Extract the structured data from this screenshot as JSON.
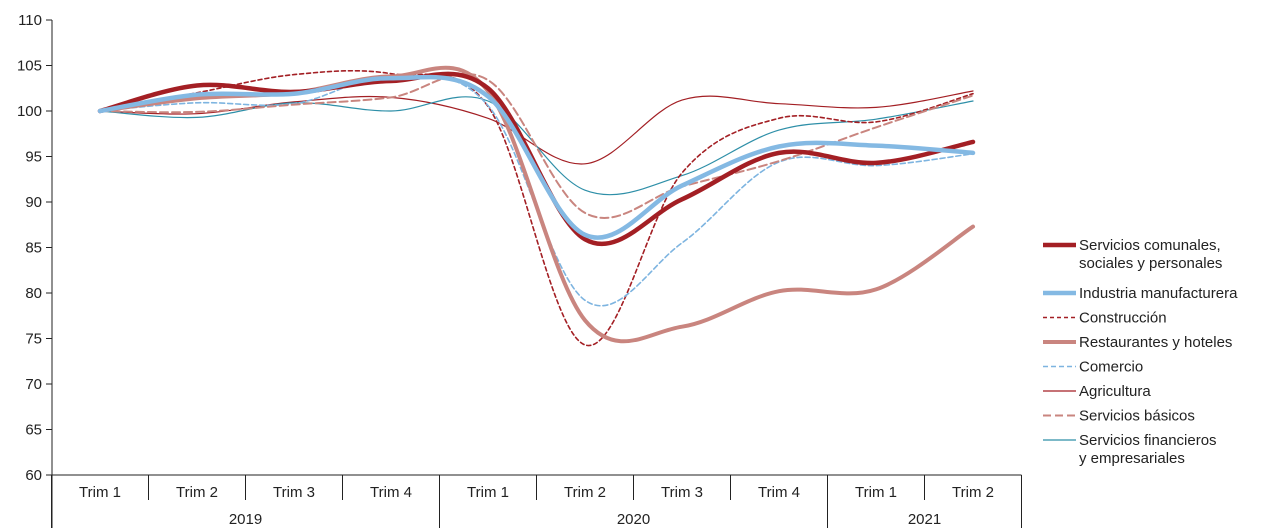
{
  "chart_data": {
    "type": "line",
    "title": "",
    "xlabel": "",
    "ylabel": "",
    "ylim": [
      60,
      110
    ],
    "yticks": [
      60,
      65,
      70,
      75,
      80,
      85,
      90,
      95,
      100,
      105,
      110
    ],
    "categories": [
      "Trim 1",
      "Trim 2",
      "Trim 3",
      "Trim 4",
      "Trim 1",
      "Trim 2",
      "Trim 3",
      "Trim 4",
      "Trim 1",
      "Trim 2"
    ],
    "years": [
      {
        "label": "2019",
        "start": 0,
        "end": 3
      },
      {
        "label": "2020",
        "start": 4,
        "end": 7
      },
      {
        "label": "2021",
        "start": 8,
        "end": 9
      }
    ],
    "grid": false,
    "legend_position": "right",
    "series": [
      {
        "name": "Servicios comunales,",
        "name2": "sociales y personales",
        "color": "#a31f24",
        "width": 4.5,
        "dash": "",
        "values": [
          100,
          102.8,
          102.1,
          103.3,
          102.5,
          85.9,
          90.3,
          95.4,
          94.3,
          96.6
        ]
      },
      {
        "name": "Industria manufacturera",
        "name2": "",
        "color": "#84b9e3",
        "width": 4.5,
        "dash": "",
        "values": [
          100,
          101.8,
          101.9,
          103.6,
          101.6,
          86.4,
          91.8,
          96.1,
          96.2,
          95.4
        ]
      },
      {
        "name": "Construcción",
        "name2": "",
        "color": "#a31f24",
        "width": 1.6,
        "dash": "4,3",
        "values": [
          100,
          102.0,
          104.0,
          104.1,
          100.5,
          74.3,
          93.2,
          99.2,
          98.8,
          101.9
        ]
      },
      {
        "name": "Restaurantes y hoteles",
        "name2": "",
        "color": "#c9857f",
        "width": 4,
        "dash": "",
        "values": [
          100,
          101.4,
          102.0,
          103.8,
          102.2,
          77.0,
          76.3,
          80.2,
          80.4,
          87.3
        ]
      },
      {
        "name": "Comercio",
        "name2": "",
        "color": "#7db4e0",
        "width": 1.6,
        "dash": "5,3",
        "values": [
          100,
          100.9,
          100.8,
          103.8,
          100.6,
          79.2,
          85.5,
          94.4,
          94.0,
          95.3
        ]
      },
      {
        "name": "Agricultura",
        "name2": "",
        "color": "#a31f24",
        "width": 1.2,
        "dash": "",
        "values": [
          100,
          99.7,
          101.0,
          101.5,
          99.2,
          94.2,
          101.2,
          100.8,
          100.4,
          102.2
        ]
      },
      {
        "name": "Servicios básicos",
        "name2": "",
        "color": "#c9857f",
        "width": 2,
        "dash": "8,4",
        "values": [
          100,
          99.9,
          100.7,
          101.5,
          103.4,
          88.8,
          91.7,
          94.5,
          98.2,
          101.7
        ]
      },
      {
        "name": "Servicios financieros",
        "name2": "y empresariales",
        "color": "#2e8fa8",
        "width": 1.2,
        "dash": "",
        "values": [
          100,
          99.3,
          100.9,
          100.0,
          101.1,
          91.3,
          92.9,
          97.9,
          99.1,
          101.1
        ]
      }
    ]
  }
}
